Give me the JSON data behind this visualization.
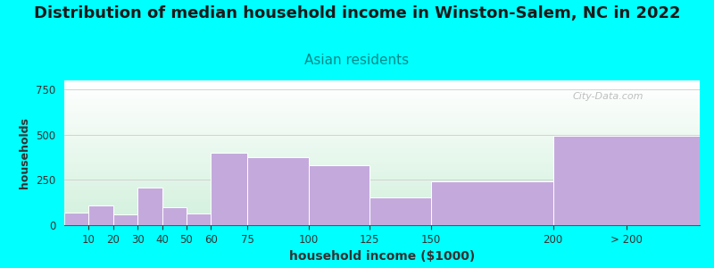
{
  "title": "Distribution of median household income in Winston-Salem, NC in 2022",
  "subtitle": "Asian residents",
  "xlabel": "household income ($1000)",
  "ylabel": "households",
  "background_outer": "#00FFFF",
  "bar_color": "#C4AADC",
  "title_fontsize": 13,
  "subtitle_fontsize": 11,
  "subtitle_color": "#008B8B",
  "title_color": "#1a1a1a",
  "xlabel_fontsize": 10,
  "ylabel_fontsize": 9,
  "values": [
    70,
    110,
    60,
    205,
    100,
    65,
    400,
    375,
    330,
    155,
    240,
    495
  ],
  "ylim": [
    0,
    800
  ],
  "yticks": [
    0,
    250,
    500,
    750
  ],
  "watermark": "City-Data.com",
  "bar_lefts": [
    0,
    10,
    20,
    30,
    40,
    50,
    60,
    75,
    100,
    125,
    150,
    200
  ],
  "bar_rights": [
    10,
    20,
    30,
    40,
    50,
    60,
    75,
    100,
    125,
    150,
    200,
    260
  ],
  "tick_positions": [
    10,
    20,
    30,
    40,
    50,
    60,
    75,
    100,
    125,
    150,
    200,
    230
  ],
  "tick_labels": [
    "10",
    "20",
    "30",
    "40",
    "50",
    "60",
    "75",
    "100",
    "125",
    "150",
    "200",
    "> 200"
  ],
  "xlim": [
    0,
    260
  ]
}
